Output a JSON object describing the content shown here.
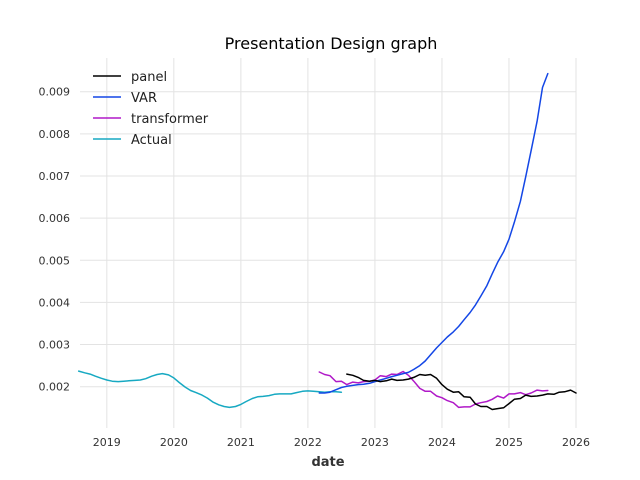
{
  "chart_data": {
    "type": "line",
    "title": "Presentation Design graph",
    "xlabel": "date",
    "ylabel": "",
    "xlim": [
      2018.6,
      2026.0
    ],
    "ylim": [
      0.00102,
      0.0098
    ],
    "x_ticks": [
      2019,
      2020,
      2021,
      2022,
      2023,
      2024,
      2025,
      2026
    ],
    "x_tick_labels": [
      "2019",
      "2020",
      "2021",
      "2022",
      "2023",
      "2024",
      "2025",
      "2026"
    ],
    "y_ticks": [
      0.002,
      0.003,
      0.004,
      0.005,
      0.006,
      0.007,
      0.008,
      0.009
    ],
    "y_tick_labels": [
      "0.002",
      "0.003",
      "0.004",
      "0.005",
      "0.006",
      "0.007",
      "0.008",
      "0.009"
    ],
    "grid": true,
    "legend_position": "top-left",
    "series": [
      {
        "name": "panel",
        "color": "#000000",
        "points": [
          [
            2022.58,
            0.0023
          ],
          [
            2022.67,
            0.00227
          ],
          [
            2022.75,
            0.00222
          ],
          [
            2022.83,
            0.00215
          ],
          [
            2022.92,
            0.00213
          ],
          [
            2023.0,
            0.00215
          ],
          [
            2023.08,
            0.00212
          ],
          [
            2023.17,
            0.00214
          ],
          [
            2023.25,
            0.00218
          ],
          [
            2023.33,
            0.00215
          ],
          [
            2023.42,
            0.00216
          ],
          [
            2023.5,
            0.00218
          ],
          [
            2023.58,
            0.00222
          ],
          [
            2023.67,
            0.00229
          ],
          [
            2023.75,
            0.00227
          ],
          [
            2023.83,
            0.00229
          ],
          [
            2023.92,
            0.0022
          ],
          [
            2024.0,
            0.00205
          ],
          [
            2024.08,
            0.00194
          ],
          [
            2024.17,
            0.00187
          ],
          [
            2024.25,
            0.00188
          ],
          [
            2024.33,
            0.00176
          ],
          [
            2024.42,
            0.00175
          ],
          [
            2024.5,
            0.00159
          ],
          [
            2024.58,
            0.00153
          ],
          [
            2024.67,
            0.00153
          ],
          [
            2024.75,
            0.00146
          ],
          [
            2024.83,
            0.00148
          ],
          [
            2024.92,
            0.0015
          ],
          [
            2025.0,
            0.0016
          ],
          [
            2025.08,
            0.0017
          ],
          [
            2025.17,
            0.00172
          ],
          [
            2025.25,
            0.0018
          ],
          [
            2025.33,
            0.00177
          ],
          [
            2025.42,
            0.00178
          ],
          [
            2025.5,
            0.0018
          ],
          [
            2025.58,
            0.00183
          ],
          [
            2025.67,
            0.00182
          ],
          [
            2025.75,
            0.00187
          ],
          [
            2025.83,
            0.00188
          ],
          [
            2025.92,
            0.00192
          ],
          [
            2026.0,
            0.00185
          ]
        ]
      },
      {
        "name": "VAR",
        "color": "#1447e6",
        "points": [
          [
            2022.17,
            0.00185
          ],
          [
            2022.25,
            0.00185
          ],
          [
            2022.33,
            0.00187
          ],
          [
            2022.42,
            0.00193
          ],
          [
            2022.5,
            0.00198
          ],
          [
            2022.58,
            0.00201
          ],
          [
            2022.67,
            0.00203
          ],
          [
            2022.75,
            0.00205
          ],
          [
            2022.83,
            0.00206
          ],
          [
            2022.92,
            0.00208
          ],
          [
            2023.0,
            0.00212
          ],
          [
            2023.08,
            0.00216
          ],
          [
            2023.17,
            0.0022
          ],
          [
            2023.25,
            0.00224
          ],
          [
            2023.33,
            0.00227
          ],
          [
            2023.42,
            0.00231
          ],
          [
            2023.5,
            0.00234
          ],
          [
            2023.58,
            0.00241
          ],
          [
            2023.67,
            0.0025
          ],
          [
            2023.75,
            0.00261
          ],
          [
            2023.83,
            0.00276
          ],
          [
            2023.92,
            0.00292
          ],
          [
            2024.0,
            0.00305
          ],
          [
            2024.08,
            0.00318
          ],
          [
            2024.17,
            0.0033
          ],
          [
            2024.25,
            0.00343
          ],
          [
            2024.33,
            0.00359
          ],
          [
            2024.42,
            0.00376
          ],
          [
            2024.5,
            0.00394
          ],
          [
            2024.58,
            0.00415
          ],
          [
            2024.67,
            0.0044
          ],
          [
            2024.75,
            0.00468
          ],
          [
            2024.83,
            0.00495
          ],
          [
            2024.92,
            0.0052
          ],
          [
            2025.0,
            0.0055
          ],
          [
            2025.08,
            0.0059
          ],
          [
            2025.17,
            0.0064
          ],
          [
            2025.25,
            0.00698
          ],
          [
            2025.33,
            0.0076
          ],
          [
            2025.42,
            0.0083
          ],
          [
            2025.5,
            0.0091
          ],
          [
            2025.58,
            0.00943
          ]
        ]
      },
      {
        "name": "transformer",
        "color": "#b019c8",
        "points": [
          [
            2022.17,
            0.00235
          ],
          [
            2022.25,
            0.00229
          ],
          [
            2022.33,
            0.00226
          ],
          [
            2022.42,
            0.00212
          ],
          [
            2022.5,
            0.00213
          ],
          [
            2022.58,
            0.00205
          ],
          [
            2022.67,
            0.00211
          ],
          [
            2022.75,
            0.00209
          ],
          [
            2022.83,
            0.00212
          ],
          [
            2022.92,
            0.00213
          ],
          [
            2023.0,
            0.00216
          ],
          [
            2023.08,
            0.00226
          ],
          [
            2023.17,
            0.00224
          ],
          [
            2023.25,
            0.0023
          ],
          [
            2023.33,
            0.00229
          ],
          [
            2023.42,
            0.00236
          ],
          [
            2023.5,
            0.00227
          ],
          [
            2023.58,
            0.00213
          ],
          [
            2023.67,
            0.00196
          ],
          [
            2023.75,
            0.00189
          ],
          [
            2023.83,
            0.00189
          ],
          [
            2023.92,
            0.00178
          ],
          [
            2024.0,
            0.00174
          ],
          [
            2024.08,
            0.00167
          ],
          [
            2024.17,
            0.00162
          ],
          [
            2024.25,
            0.00151
          ],
          [
            2024.33,
            0.00152
          ],
          [
            2024.42,
            0.00152
          ],
          [
            2024.5,
            0.00159
          ],
          [
            2024.58,
            0.00162
          ],
          [
            2024.67,
            0.00165
          ],
          [
            2024.75,
            0.0017
          ],
          [
            2024.83,
            0.00178
          ],
          [
            2024.92,
            0.00173
          ],
          [
            2025.0,
            0.00183
          ],
          [
            2025.08,
            0.00183
          ],
          [
            2025.17,
            0.00186
          ],
          [
            2025.25,
            0.00181
          ],
          [
            2025.33,
            0.00185
          ],
          [
            2025.42,
            0.00192
          ],
          [
            2025.5,
            0.0019
          ],
          [
            2025.58,
            0.00191
          ]
        ]
      },
      {
        "name": "Actual",
        "color": "#17a9c2",
        "points": [
          [
            2018.58,
            0.00237
          ],
          [
            2018.67,
            0.00233
          ],
          [
            2018.75,
            0.0023
          ],
          [
            2018.83,
            0.00225
          ],
          [
            2018.92,
            0.0022
          ],
          [
            2019.0,
            0.00216
          ],
          [
            2019.08,
            0.00213
          ],
          [
            2019.17,
            0.00212
          ],
          [
            2019.25,
            0.00213
          ],
          [
            2019.33,
            0.00214
          ],
          [
            2019.42,
            0.00215
          ],
          [
            2019.5,
            0.00216
          ],
          [
            2019.58,
            0.00219
          ],
          [
            2019.67,
            0.00225
          ],
          [
            2019.75,
            0.00229
          ],
          [
            2019.83,
            0.00231
          ],
          [
            2019.92,
            0.00228
          ],
          [
            2020.0,
            0.00221
          ],
          [
            2020.08,
            0.0021
          ],
          [
            2020.17,
            0.00199
          ],
          [
            2020.25,
            0.00191
          ],
          [
            2020.33,
            0.00186
          ],
          [
            2020.42,
            0.0018
          ],
          [
            2020.5,
            0.00173
          ],
          [
            2020.58,
            0.00164
          ],
          [
            2020.67,
            0.00157
          ],
          [
            2020.75,
            0.00153
          ],
          [
            2020.83,
            0.00151
          ],
          [
            2020.92,
            0.00153
          ],
          [
            2021.0,
            0.00158
          ],
          [
            2021.08,
            0.00165
          ],
          [
            2021.17,
            0.00172
          ],
          [
            2021.25,
            0.00176
          ],
          [
            2021.33,
            0.00177
          ],
          [
            2021.42,
            0.00179
          ],
          [
            2021.5,
            0.00182
          ],
          [
            2021.58,
            0.00183
          ],
          [
            2021.67,
            0.00183
          ],
          [
            2021.75,
            0.00183
          ],
          [
            2021.83,
            0.00186
          ],
          [
            2021.92,
            0.00189
          ],
          [
            2022.0,
            0.0019
          ],
          [
            2022.08,
            0.00189
          ],
          [
            2022.17,
            0.00188
          ],
          [
            2022.25,
            0.00187
          ],
          [
            2022.33,
            0.00188
          ],
          [
            2022.42,
            0.00188
          ],
          [
            2022.5,
            0.00187
          ]
        ]
      }
    ]
  }
}
